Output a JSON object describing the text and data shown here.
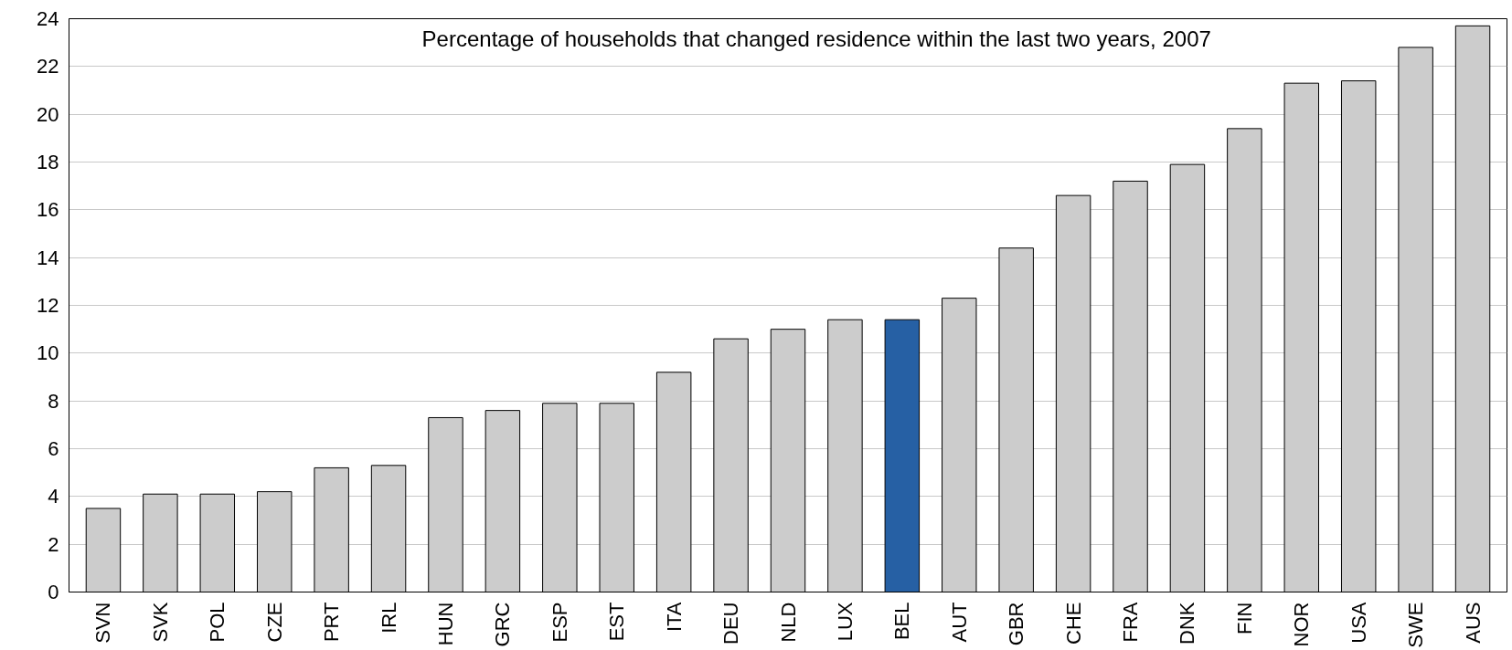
{
  "chart_data": {
    "type": "bar",
    "title": "Percentage of households that changed residence within the last two years, 2007",
    "categories": [
      "SVN",
      "SVK",
      "POL",
      "CZE",
      "PRT",
      "IRL",
      "HUN",
      "GRC",
      "ESP",
      "EST",
      "ITA",
      "DEU",
      "NLD",
      "LUX",
      "BEL",
      "AUT",
      "GBR",
      "CHE",
      "FRA",
      "DNK",
      "FIN",
      "NOR",
      "USA",
      "SWE",
      "AUS"
    ],
    "values": [
      3.5,
      4.1,
      4.1,
      4.2,
      5.2,
      5.3,
      7.3,
      7.6,
      7.9,
      7.9,
      9.2,
      10.6,
      11.0,
      11.4,
      11.4,
      12.3,
      14.4,
      16.6,
      17.2,
      17.9,
      19.4,
      21.3,
      21.4,
      22.8,
      23.7
    ],
    "colors": [
      "#cccccc",
      "#cccccc",
      "#cccccc",
      "#cccccc",
      "#cccccc",
      "#cccccc",
      "#cccccc",
      "#cccccc",
      "#cccccc",
      "#cccccc",
      "#cccccc",
      "#cccccc",
      "#cccccc",
      "#cccccc",
      "#2660a4",
      "#cccccc",
      "#cccccc",
      "#cccccc",
      "#cccccc",
      "#cccccc",
      "#cccccc",
      "#cccccc",
      "#cccccc",
      "#cccccc",
      "#cccccc"
    ],
    "ylim": [
      0,
      24
    ],
    "yticks": [
      0,
      2,
      4,
      6,
      8,
      10,
      12,
      14,
      16,
      18,
      20,
      22,
      24
    ],
    "grid": "y"
  }
}
